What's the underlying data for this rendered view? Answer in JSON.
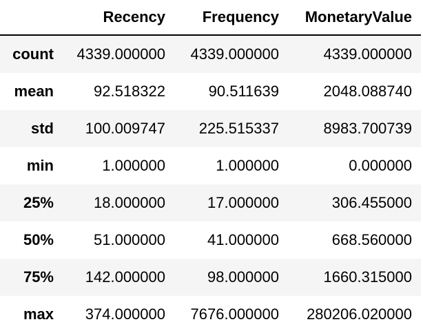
{
  "table": {
    "index_header": "",
    "columns": [
      "Recency",
      "Frequency",
      "MonetaryValue"
    ],
    "rows": [
      {
        "label": "count",
        "values": [
          "4339.000000",
          "4339.000000",
          "4339.000000"
        ]
      },
      {
        "label": "mean",
        "values": [
          "92.518322",
          "90.511639",
          "2048.088740"
        ]
      },
      {
        "label": "std",
        "values": [
          "100.009747",
          "225.515337",
          "8983.700739"
        ]
      },
      {
        "label": "min",
        "values": [
          "1.000000",
          "1.000000",
          "0.000000"
        ]
      },
      {
        "label": "25%",
        "values": [
          "18.000000",
          "17.000000",
          "306.455000"
        ]
      },
      {
        "label": "50%",
        "values": [
          "51.000000",
          "41.000000",
          "668.560000"
        ]
      },
      {
        "label": "75%",
        "values": [
          "142.000000",
          "98.000000",
          "1660.315000"
        ]
      },
      {
        "label": "max",
        "values": [
          "374.000000",
          "7676.000000",
          "280206.020000"
        ]
      }
    ],
    "stripe_color": "#f5f5f5",
    "header_rule_color": "#000000"
  }
}
